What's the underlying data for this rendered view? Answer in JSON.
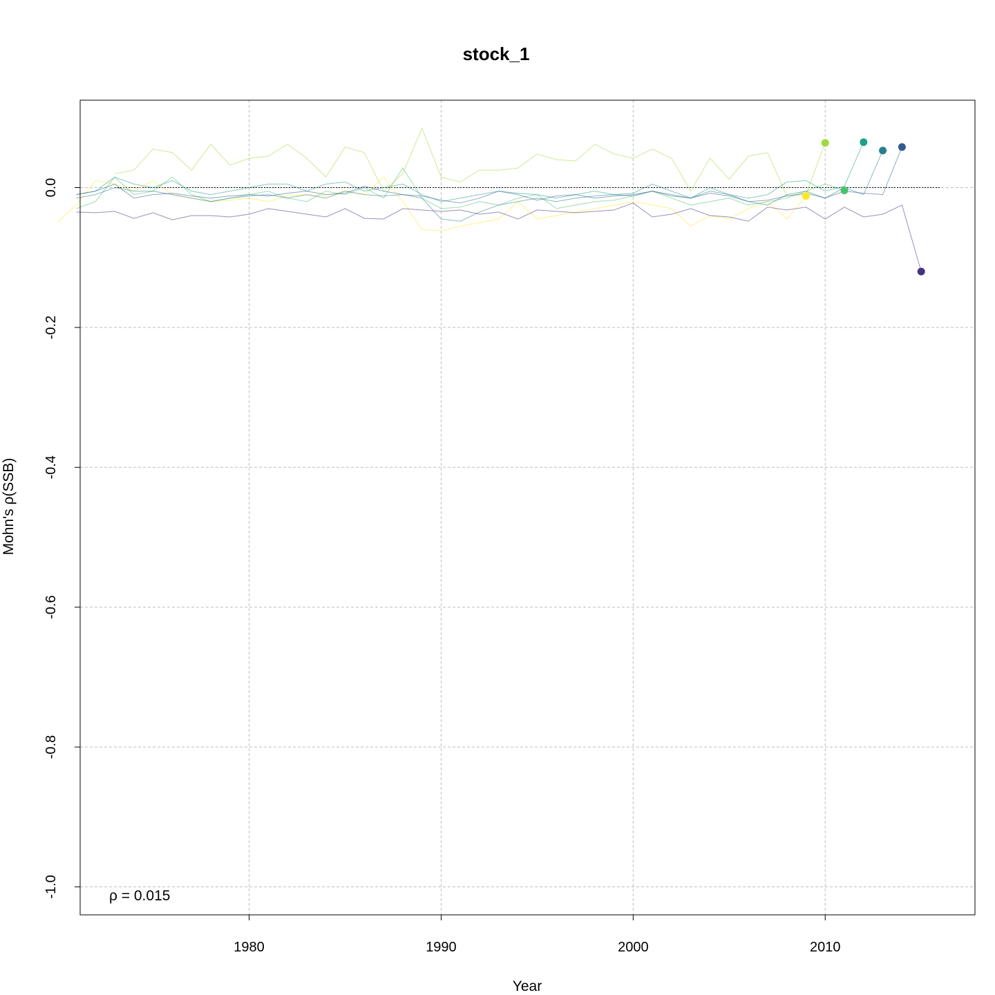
{
  "chart_data": {
    "type": "line",
    "title": "stock_1",
    "xlabel": "Year",
    "ylabel": "Mohn's ρ(SSB)",
    "annotation": "ρ = 0.015",
    "xlim": [
      1971.2,
      2017.8
    ],
    "ylim": [
      -1.04,
      0.125
    ],
    "x_ticks": [
      1980,
      1990,
      2000,
      2010
    ],
    "y_ticks": [
      0.0,
      -0.2,
      -0.4,
      -0.6,
      -0.8,
      -1.0
    ],
    "y_tick_labels": [
      "0.0",
      "-0.2",
      "-0.4",
      "-0.6",
      "-0.8",
      "-1.0"
    ],
    "grid": true,
    "reference_line": {
      "y": 0,
      "x": [
        1973,
        2016
      ]
    },
    "series": [
      {
        "color": "#FDE725",
        "end_year": 2009,
        "end_value": -0.012,
        "values": [
          -0.05,
          -0.025,
          0.01,
          0.005,
          -0.005,
          0.01,
          -0.01,
          -0.015,
          -0.02,
          -0.018,
          -0.015,
          -0.02,
          -0.012,
          -0.01,
          -0.012,
          -0.005,
          -0.01,
          0.015,
          -0.02,
          -0.06,
          -0.062,
          -0.055,
          -0.05,
          -0.045,
          -0.02,
          -0.045,
          -0.04,
          -0.035,
          -0.03,
          -0.025,
          -0.02,
          -0.025,
          -0.03,
          -0.055,
          -0.04,
          -0.045,
          -0.03,
          -0.02,
          -0.045,
          -0.012
        ]
      },
      {
        "color": "#A0DA39",
        "end_year": 2010,
        "end_value": 0.064,
        "values": [
          0.02,
          0.025,
          0.055,
          0.05,
          0.025,
          0.062,
          0.032,
          0.042,
          0.045,
          0.062,
          0.042,
          0.015,
          0.058,
          0.05,
          -0.005,
          0.02,
          0.085,
          0.015,
          0.008,
          0.025,
          0.025,
          0.028,
          0.048,
          0.04,
          0.038,
          0.062,
          0.048,
          0.042,
          0.055,
          0.042,
          -0.005,
          0.042,
          0.012,
          0.045,
          0.05,
          -0.012,
          -0.01,
          0.064
        ]
      },
      {
        "color": "#4AC16D",
        "end_year": 2011,
        "end_value": -0.004,
        "values": [
          -0.03,
          -0.02,
          0.015,
          -0.01,
          -0.005,
          0.015,
          -0.01,
          -0.02,
          -0.015,
          -0.01,
          -0.005,
          -0.015,
          -0.02,
          -0.005,
          -0.01,
          0.0,
          -0.015,
          0.028,
          -0.015,
          -0.03,
          -0.028,
          -0.02,
          -0.025,
          -0.015,
          -0.01,
          -0.03,
          -0.025,
          -0.02,
          -0.018,
          -0.012,
          -0.005,
          -0.015,
          -0.025,
          -0.02,
          -0.015,
          -0.025,
          -0.02,
          -0.015,
          -0.005,
          0.005,
          -0.004
        ]
      },
      {
        "color": "#1FA187",
        "end_year": 2012,
        "end_value": 0.065,
        "values": [
          -0.01,
          -0.005,
          0.015,
          0.005,
          0.0,
          0.01,
          -0.005,
          -0.01,
          -0.005,
          0.0,
          0.005,
          0.005,
          -0.005,
          0.005,
          0.008,
          -0.005,
          0.0,
          0.005,
          -0.01,
          -0.02,
          -0.015,
          -0.01,
          -0.005,
          -0.008,
          -0.01,
          -0.015,
          -0.01,
          -0.005,
          -0.01,
          -0.008,
          0.005,
          -0.005,
          -0.015,
          0.0,
          -0.01,
          -0.015,
          -0.01,
          0.008,
          0.01,
          -0.005,
          0.002,
          0.065
        ]
      },
      {
        "color": "#277F8E",
        "end_year": 2013,
        "end_value": 0.053,
        "values": [
          -0.015,
          -0.01,
          0.0,
          -0.005,
          -0.005,
          -0.01,
          -0.015,
          -0.02,
          -0.015,
          -0.012,
          -0.01,
          -0.015,
          -0.01,
          -0.015,
          -0.005,
          -0.01,
          -0.012,
          -0.01,
          -0.015,
          -0.045,
          -0.048,
          -0.035,
          -0.025,
          -0.02,
          -0.015,
          -0.02,
          -0.015,
          -0.012,
          -0.01,
          -0.012,
          -0.005,
          -0.01,
          -0.015,
          -0.005,
          -0.01,
          -0.02,
          -0.025,
          -0.01,
          -0.005,
          -0.015,
          0.0,
          -0.01,
          0.053
        ]
      },
      {
        "color": "#365C8D",
        "end_year": 2014,
        "end_value": 0.058,
        "values": [
          -0.01,
          -0.005,
          0.005,
          -0.015,
          -0.01,
          -0.008,
          -0.012,
          -0.015,
          -0.012,
          -0.01,
          -0.012,
          -0.008,
          -0.005,
          -0.01,
          -0.008,
          0.002,
          -0.005,
          -0.01,
          -0.012,
          -0.018,
          -0.022,
          -0.015,
          -0.005,
          -0.01,
          -0.018,
          -0.012,
          -0.01,
          -0.015,
          -0.012,
          -0.01,
          -0.005,
          -0.012,
          -0.015,
          -0.008,
          -0.012,
          -0.02,
          -0.018,
          -0.012,
          -0.008,
          -0.015,
          -0.005,
          -0.008,
          -0.01,
          0.058
        ]
      },
      {
        "color": "#46337E",
        "end_year": 2015,
        "end_value": -0.12,
        "values": [
          -0.035,
          -0.036,
          -0.034,
          -0.044,
          -0.036,
          -0.046,
          -0.04,
          -0.04,
          -0.042,
          -0.038,
          -0.03,
          -0.034,
          -0.038,
          -0.042,
          -0.03,
          -0.044,
          -0.045,
          -0.03,
          -0.032,
          -0.034,
          -0.032,
          -0.038,
          -0.035,
          -0.045,
          -0.032,
          -0.034,
          -0.036,
          -0.034,
          -0.032,
          -0.022,
          -0.042,
          -0.038,
          -0.03,
          -0.04,
          -0.042,
          -0.048,
          -0.028,
          -0.032,
          -0.028,
          -0.045,
          -0.028,
          -0.042,
          -0.038,
          -0.025,
          -0.12
        ]
      }
    ]
  }
}
